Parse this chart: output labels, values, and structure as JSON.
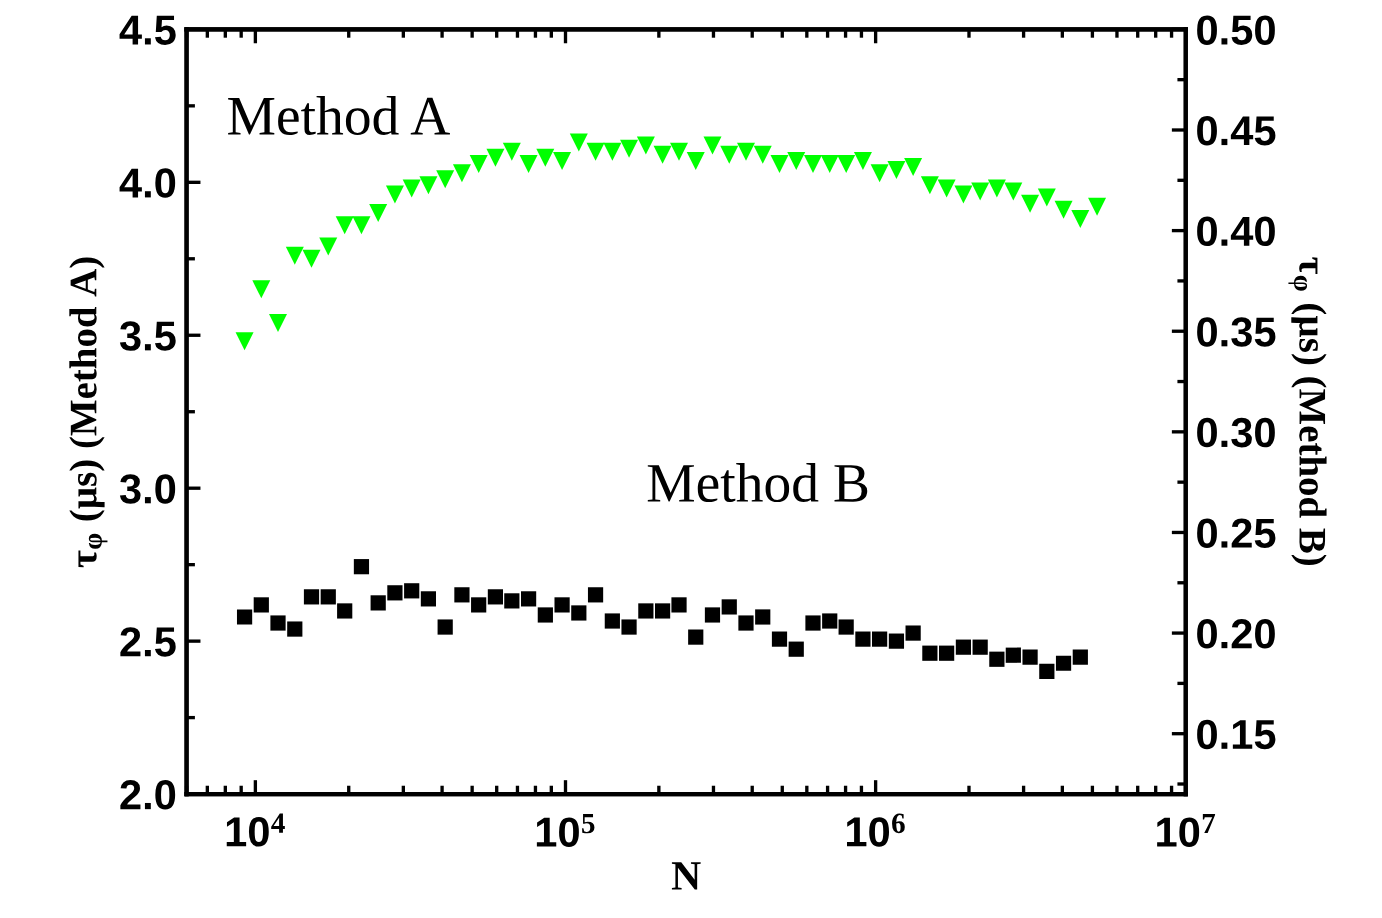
{
  "chart_data": {
    "type": "scatter",
    "xlabel": "N",
    "ylabel": "τ$_{φ}$ (µs) (Method A)",
    "y2label": "τ$_{φ}$ (µs) (Method B)",
    "log": "x",
    "grid": false,
    "legend": false,
    "xlim": [
      6000,
      10000000
    ],
    "xticks": [
      {
        "value": 10000,
        "label": "10$^{4}$"
      },
      {
        "value": 100000,
        "label": "10$^{5}$"
      },
      {
        "value": 1000000,
        "label": "10$^{6}$"
      },
      {
        "value": 10000000,
        "label": "10$^{7}$"
      }
    ],
    "ylim": [
      2.0,
      4.5
    ],
    "yticks": [
      {
        "value": 2.0,
        "label": "2.0"
      },
      2.5,
      {
        "value": 3.0,
        "label": "3.0"
      },
      3.5,
      {
        "value": 4.0,
        "label": "4.0"
      },
      4.5
    ],
    "y2lim": [
      0.12,
      0.5
    ],
    "y2ticks": [
      0.15,
      {
        "value": 0.2,
        "label": "0.20"
      },
      0.25,
      {
        "value": 0.3,
        "label": "0.30"
      },
      0.35,
      {
        "value": 0.4,
        "label": "0.40"
      },
      0.45,
      {
        "value": 0.5,
        "label": "0.50"
      }
    ],
    "annotations": [
      "Method A",
      "Method B"
    ],
    "series": [
      {
        "color": "#00ff00",
        "marker": "triangle",
        "x": [
          9230,
          10450,
          11830,
          13400,
          15170,
          17180,
          19410,
          21980,
          24890,
          28180,
          31920,
          36140,
          40930,
          46350,
          52480,
          59430,
          67140,
          76030,
          86100,
          97500,
          110400,
          125000,
          141600,
          160300,
          181600,
          205600,
          232300,
          263000,
          297800,
          337300,
          381900,
          432500,
          489800,
          554600,
          628100,
          711200,
          803500,
          910000,
          1030000,
          1167000,
          1321000,
          1496000,
          1694000,
          1919000,
          2173000,
          2460000,
          2780000,
          3148000,
          3565000,
          4036000,
          4571000,
          5176000
        ],
        "values": [
          3.48,
          3.65,
          3.54,
          3.76,
          3.75,
          3.79,
          3.86,
          3.86,
          3.9,
          3.96,
          3.98,
          3.99,
          4.01,
          4.03,
          4.06,
          4.08,
          4.1,
          4.06,
          4.08,
          4.07,
          4.13,
          4.1,
          4.1,
          4.11,
          4.12,
          4.09,
          4.1,
          4.07,
          4.12,
          4.09,
          4.1,
          4.09,
          4.06,
          4.07,
          4.06,
          4.06,
          4.06,
          4.07,
          4.03,
          4.04,
          4.05,
          3.99,
          3.98,
          3.96,
          3.97,
          3.98,
          3.97,
          3.93,
          3.95,
          3.91,
          3.88,
          3.92
        ]
      },
      {
        "color": "#000000",
        "marker": "square",
        "axis": "y2",
        "x": [
          9230,
          10450,
          11830,
          13400,
          15170,
          17180,
          19410,
          21980,
          24890,
          28180,
          31920,
          36140,
          40930,
          46350,
          52480,
          59430,
          67140,
          76030,
          86100,
          97500,
          110400,
          125000,
          141600,
          160300,
          181600,
          205600,
          232300,
          263000,
          297800,
          337300,
          381900,
          432500,
          489800,
          554600,
          628100,
          711200,
          803500,
          910000,
          1030000,
          1167000,
          1321000,
          1496000,
          1694000,
          1919000,
          2173000,
          2460000,
          2780000,
          3148000,
          3565000,
          4036000,
          4571000
        ],
        "values": [
          0.208,
          0.214,
          0.205,
          0.202,
          0.218,
          0.218,
          0.211,
          0.233,
          0.215,
          0.22,
          0.221,
          0.217,
          0.203,
          0.219,
          0.214,
          0.218,
          0.216,
          0.217,
          0.209,
          0.214,
          0.21,
          0.219,
          0.206,
          0.203,
          0.211,
          0.211,
          0.214,
          0.198,
          0.209,
          0.213,
          0.205,
          0.208,
          0.197,
          0.192,
          0.205,
          0.206,
          0.203,
          0.197,
          0.197,
          0.196,
          0.2,
          0.19,
          0.19,
          0.193,
          0.193,
          0.187,
          0.189,
          0.188,
          0.181,
          0.185,
          0.188
        ]
      }
    ]
  }
}
